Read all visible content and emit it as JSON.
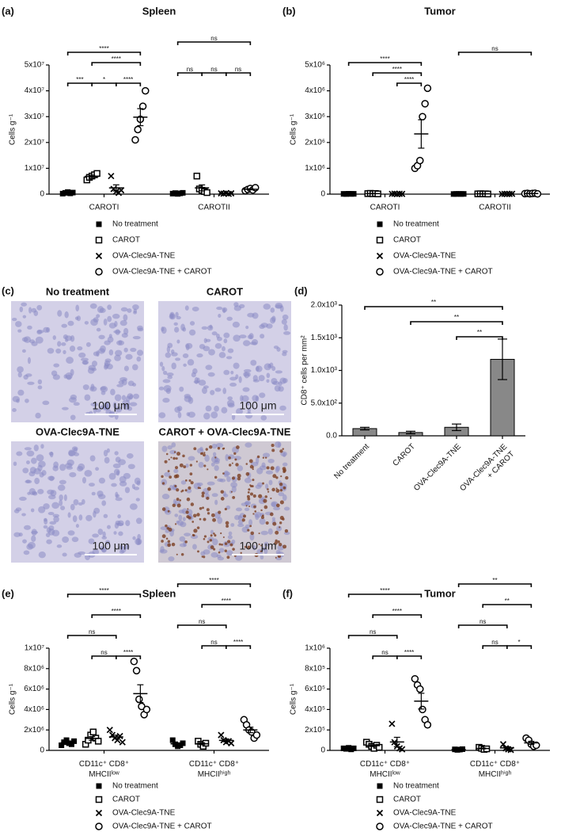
{
  "chart_data": [
    {
      "type": "dotplot",
      "panel_label": "(a)",
      "title": "Spleen",
      "ylabel": "Cells g⁻¹",
      "categories": [
        "CAROTI",
        "CAROTII"
      ],
      "ylim": [
        0,
        50000000
      ],
      "yticks": [
        0,
        {
          "value": 10000000,
          "label": "1x10⁷"
        },
        {
          "value": 20000000,
          "label": "2x10⁷"
        },
        {
          "value": 30000000,
          "label": "3x10⁷"
        },
        {
          "value": 40000000,
          "label": "4x10⁷"
        },
        {
          "value": 50000000,
          "label": "5x10⁷"
        }
      ],
      "series": [
        {
          "name": "No treatment",
          "marker": "filled-square",
          "color": "#000000",
          "values": [
            [
              200000,
              500000,
              800000,
              300000,
              600000
            ],
            [
              200000,
              400000,
              100000,
              300000,
              500000
            ]
          ],
          "mean": [
            480000,
            300000
          ],
          "sem": [
            100000,
            70000
          ]
        },
        {
          "name": "CAROT",
          "marker": "open-square",
          "color": "#000000",
          "values": [
            [
              5500000,
              6500000,
              7000000,
              7500000,
              8000000
            ],
            [
              7000000,
              2000000,
              1500000,
              1000000,
              600000
            ]
          ],
          "mean": [
            6900000,
            2420000
          ],
          "sem": [
            450000,
            1150000
          ]
        },
        {
          "name": "OVA-Clec9A-TNE",
          "marker": "cross",
          "color": "#000000",
          "values": [
            [
              7000000,
              2000000,
              1000000,
              500000,
              1500000
            ],
            [
              300000,
              200000,
              400000,
              100000,
              300000
            ]
          ],
          "mean": [
            2400000,
            260000
          ],
          "sem": [
            1200000,
            50000
          ]
        },
        {
          "name": "OVA-Clec9A-TNE + CAROT",
          "marker": "open-circle",
          "color": "#000000",
          "values": [
            [
              21000000,
              25000000,
              29000000,
              34000000,
              40000000
            ],
            [
              1300000,
              1800000,
              2200000,
              1600000,
              2500000
            ]
          ],
          "mean": [
            29800000,
            1880000
          ],
          "sem": [
            3300000,
            210000
          ]
        }
      ],
      "brackets": [
        {
          "category": 0,
          "from": 0,
          "to": 3,
          "label": "****"
        },
        {
          "category": 0,
          "from": 1,
          "to": 3,
          "label": "****"
        },
        {
          "category": 0,
          "from": 0,
          "to": 1,
          "label": "***"
        },
        {
          "category": 0,
          "from": 1,
          "to": 2,
          "label": "*"
        },
        {
          "category": 0,
          "from": 2,
          "to": 3,
          "label": "****"
        },
        {
          "category": 1,
          "from": 0,
          "to": 3,
          "label": "ns"
        },
        {
          "category": 1,
          "from": 0,
          "to": 1,
          "label": "ns"
        },
        {
          "category": 1,
          "from": 1,
          "to": 2,
          "label": "ns"
        },
        {
          "category": 1,
          "from": 2,
          "to": 3,
          "label": "ns"
        }
      ]
    },
    {
      "type": "dotplot",
      "panel_label": "(b)",
      "title": "Tumor",
      "ylabel": "Cells g⁻¹",
      "categories": [
        "CAROTI",
        "CAROTII"
      ],
      "ylim": [
        0,
        5000000
      ],
      "yticks": [
        0,
        {
          "value": 1000000,
          "label": "1x10⁶"
        },
        {
          "value": 2000000,
          "label": "2x10⁶"
        },
        {
          "value": 3000000,
          "label": "3x10⁶"
        },
        {
          "value": 4000000,
          "label": "4x10⁶"
        },
        {
          "value": 5000000,
          "label": "5x10⁶"
        }
      ],
      "series": [
        {
          "name": "No treatment",
          "marker": "filled-square",
          "color": "#000000",
          "values": [
            [
              10000,
              5000,
              15000,
              8000,
              12000
            ],
            [
              5000,
              8000,
              10000,
              6000,
              9000
            ]
          ],
          "mean": [
            10000,
            7600
          ],
          "sem": [
            2000,
            1000
          ]
        },
        {
          "name": "CAROT",
          "marker": "open-square",
          "color": "#000000",
          "values": [
            [
              20000,
              30000,
              15000,
              25000,
              10000
            ],
            [
              10000,
              15000,
              8000,
              12000,
              5000
            ]
          ],
          "mean": [
            20000,
            10000
          ],
          "sem": [
            3500,
            1700
          ]
        },
        {
          "name": "OVA-Clec9A-TNE",
          "marker": "cross",
          "color": "#000000",
          "values": [
            [
              10000,
              15000,
              5000,
              12000,
              8000
            ],
            [
              5000,
              10000,
              8000,
              6000,
              12000
            ]
          ],
          "mean": [
            10000,
            8200
          ],
          "sem": [
            1700,
            1200
          ]
        },
        {
          "name": "OVA-Clec9A-TNE + CAROT",
          "marker": "open-circle",
          "color": "#000000",
          "values": [
            [
              1000000,
              1100000,
              1300000,
              3000000,
              3500000,
              4100000
            ],
            [
              20000,
              30000,
              15000,
              25000,
              35000,
              10000
            ]
          ],
          "mean": [
            2330000,
            22500
          ],
          "sem": [
            550000,
            4000
          ]
        }
      ],
      "brackets": [
        {
          "category": 0,
          "from": 0,
          "to": 3,
          "label": "****"
        },
        {
          "category": 0,
          "from": 1,
          "to": 3,
          "label": "****"
        },
        {
          "category": 0,
          "from": 2,
          "to": 3,
          "label": "****"
        },
        {
          "category": 1,
          "from": 0,
          "to": 3,
          "label": "ns"
        }
      ]
    },
    {
      "type": "bar",
      "panel_label": "(d)",
      "ylabel": "CD8⁺ cells per mm²",
      "categories": [
        "No treatment",
        "CAROT",
        "OVA-Clec9A-TNE",
        "OVA-Clec9A-TNE\n+ CAROT"
      ],
      "values": [
        110,
        50,
        130,
        1170
      ],
      "errors": [
        20,
        20,
        50,
        310
      ],
      "color": "#888888",
      "ylim": [
        0,
        2000
      ],
      "yticks": [
        {
          "value": 0,
          "label": "0.0"
        },
        {
          "value": 500,
          "label": "5.0x10²"
        },
        {
          "value": 1000,
          "label": "1.0x10³"
        },
        {
          "value": 1500,
          "label": "1.5x10³"
        },
        {
          "value": 2000,
          "label": "2.0x10³"
        }
      ],
      "brackets": [
        {
          "from": 0,
          "to": 3,
          "label": "**"
        },
        {
          "from": 1,
          "to": 3,
          "label": "**"
        },
        {
          "from": 2,
          "to": 3,
          "label": "**"
        }
      ]
    },
    {
      "type": "dotplot",
      "panel_label": "(e)",
      "title": "Spleen",
      "ylabel": "Cells g⁻¹",
      "categories": [
        "CD11c⁺ CD8⁺\nMHCIIˡᵒʷ",
        "CD11c⁺ CD8⁺\nMHCIIʰⁱᵍʰ"
      ],
      "ylim": [
        0,
        10000000
      ],
      "yticks": [
        0,
        {
          "value": 2000000,
          "label": "2x10⁶"
        },
        {
          "value": 4000000,
          "label": "4x10⁶"
        },
        {
          "value": 6000000,
          "label": "6x10⁶"
        },
        {
          "value": 8000000,
          "label": "8x10⁶"
        },
        {
          "value": 10000000,
          "label": "1x10⁷"
        }
      ],
      "series": [
        {
          "name": "No treatment",
          "marker": "filled-square",
          "color": "#000000",
          "values": [
            [
              500000,
              800000,
              1000000,
              700000,
              600000,
              900000
            ],
            [
              1000000,
              600000,
              400000,
              500000,
              700000
            ]
          ],
          "mean": [
            750000,
            640000
          ],
          "sem": [
            80000,
            100000
          ]
        },
        {
          "name": "CAROT",
          "marker": "open-square",
          "color": "#000000",
          "values": [
            [
              600000,
              1000000,
              1500000,
              1800000,
              1200000,
              900000
            ],
            [
              900000,
              600000,
              400000,
              700000
            ]
          ],
          "mean": [
            1170000,
            650000
          ],
          "sem": [
            180000,
            100000
          ]
        },
        {
          "name": "OVA-Clec9A-TNE",
          "marker": "cross",
          "color": "#000000",
          "values": [
            [
              2000000,
              1500000,
              1200000,
              1000000,
              1400000,
              800000
            ],
            [
              1500000,
              1000000,
              800000,
              900000,
              700000
            ]
          ],
          "mean": [
            1320000,
            980000
          ],
          "sem": [
            170000,
            140000
          ]
        },
        {
          "name": "OVA-Clec9A-TNE + CAROT",
          "marker": "open-circle",
          "color": "#000000",
          "values": [
            [
              8700000,
              7800000,
              5000000,
              4300000,
              3500000,
              4000000
            ],
            [
              3000000,
              2500000,
              2000000,
              1800000,
              1200000,
              1500000
            ]
          ],
          "mean": [
            5550000,
            2000000
          ],
          "sem": [
            870000,
            270000
          ]
        }
      ],
      "brackets": [
        {
          "category": 0,
          "from": 0,
          "to": 3,
          "label": "****"
        },
        {
          "category": 0,
          "from": 1,
          "to": 3,
          "label": "****"
        },
        {
          "category": 0,
          "from": 0,
          "to": 2,
          "label": "ns"
        },
        {
          "category": 0,
          "from": 2,
          "to": 3,
          "label": "****"
        },
        {
          "category": 0,
          "from": 1,
          "to": 2,
          "label": "ns"
        },
        {
          "category": 1,
          "from": 0,
          "to": 3,
          "label": "****"
        },
        {
          "category": 1,
          "from": 1,
          "to": 3,
          "label": "****"
        },
        {
          "category": 1,
          "from": 0,
          "to": 2,
          "label": "ns"
        },
        {
          "category": 1,
          "from": 2,
          "to": 3,
          "label": "****"
        },
        {
          "category": 1,
          "from": 1,
          "to": 2,
          "label": "ns"
        }
      ]
    },
    {
      "type": "dotplot",
      "panel_label": "(f)",
      "title": "Tumor",
      "ylabel": "Cells g⁻¹",
      "categories": [
        "CD11c⁺ CD8⁺\nMHCIIˡᵒʷ",
        "CD11c⁺ CD8⁺\nMHCIIʰⁱᵍʰ"
      ],
      "ylim": [
        0,
        1000000
      ],
      "yticks": [
        0,
        {
          "value": 200000,
          "label": "2x10⁵"
        },
        {
          "value": 400000,
          "label": "4x10⁵"
        },
        {
          "value": 600000,
          "label": "6x10⁵"
        },
        {
          "value": 800000,
          "label": "8x10⁵"
        },
        {
          "value": 1000000,
          "label": "1x10⁶"
        }
      ],
      "series": [
        {
          "name": "No treatment",
          "marker": "filled-square",
          "color": "#000000",
          "values": [
            [
              20000,
              15000,
              25000,
              10000,
              20000
            ],
            [
              10000,
              5000,
              8000,
              12000
            ]
          ],
          "mean": [
            18000,
            8750
          ],
          "sem": [
            2500,
            1500
          ]
        },
        {
          "name": "CAROT",
          "marker": "open-square",
          "color": "#000000",
          "values": [
            [
              80000,
              60000,
              40000,
              20000,
              50000,
              30000
            ],
            [
              30000,
              20000,
              10000,
              15000
            ]
          ],
          "mean": [
            46700,
            18750
          ],
          "sem": [
            9000,
            4300
          ]
        },
        {
          "name": "OVA-Clec9A-TNE",
          "marker": "cross",
          "color": "#000000",
          "values": [
            [
              260000,
              80000,
              40000,
              20000,
              10000
            ],
            [
              60000,
              20000,
              10000,
              5000
            ]
          ],
          "mean": [
            82000,
            23750
          ],
          "sem": [
            46000,
            12500
          ]
        },
        {
          "name": "OVA-Clec9A-TNE + CAROT",
          "marker": "open-circle",
          "color": "#000000",
          "values": [
            [
              700000,
              640000,
              600000,
              400000,
              300000,
              250000
            ],
            [
              120000,
              100000,
              60000,
              40000,
              50000
            ]
          ],
          "mean": [
            481700,
            74000
          ],
          "sem": [
            77000,
            15000
          ]
        }
      ],
      "brackets": [
        {
          "category": 0,
          "from": 0,
          "to": 3,
          "label": "****"
        },
        {
          "category": 0,
          "from": 1,
          "to": 3,
          "label": "****"
        },
        {
          "category": 0,
          "from": 0,
          "to": 2,
          "label": "ns"
        },
        {
          "category": 0,
          "from": 2,
          "to": 3,
          "label": "****"
        },
        {
          "category": 0,
          "from": 1,
          "to": 2,
          "label": "ns"
        },
        {
          "category": 1,
          "from": 0,
          "to": 3,
          "label": "**"
        },
        {
          "category": 1,
          "from": 1,
          "to": 3,
          "label": "**"
        },
        {
          "category": 1,
          "from": 0,
          "to": 2,
          "label": "ns"
        },
        {
          "category": 1,
          "from": 2,
          "to": 3,
          "label": "*"
        },
        {
          "category": 1,
          "from": 1,
          "to": 2,
          "label": "ns"
        }
      ]
    }
  ],
  "images_panel": {
    "panel_label": "(c)",
    "images": [
      {
        "title": "No treatment",
        "scale_bar": "100 μm"
      },
      {
        "title": "CAROT",
        "scale_bar": "100 μm"
      },
      {
        "title": "OVA-Clec9A-TNE",
        "scale_bar": "100 μm"
      },
      {
        "title": "CAROT + OVA-Clec9A-TNE",
        "scale_bar": "100 μm"
      }
    ]
  }
}
